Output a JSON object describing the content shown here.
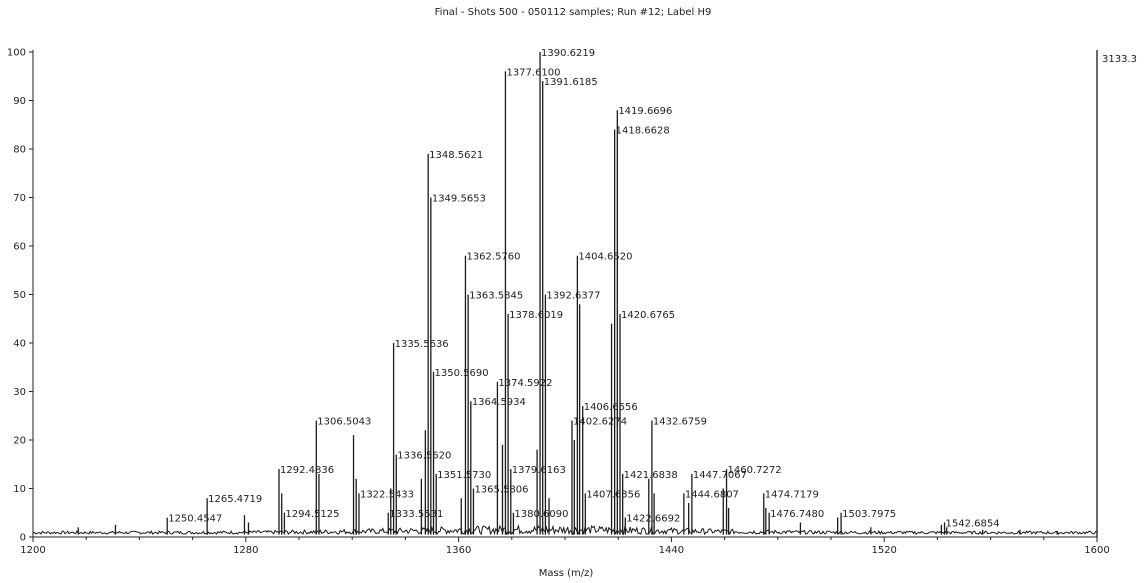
{
  "chart_data": {
    "type": "line",
    "title": "Final - Shots 500 - 050112 samples; Run #12; Label H9",
    "xlabel": "Mass (m/z)",
    "ylabel": "",
    "xlim": [
      1200,
      1600
    ],
    "ylim": [
      0,
      100
    ],
    "x_ticks": [
      "1200",
      "1280",
      "1360",
      "1440",
      "1520",
      "1600"
    ],
    "y_ticks": [
      "0",
      "10",
      "20",
      "30",
      "40",
      "50",
      "60",
      "70",
      "80",
      "90",
      "100"
    ],
    "max_intensity_label": "3133.3",
    "grid": false,
    "peaks": [
      {
        "x": 1250.4547,
        "y": 4,
        "label": "1250.4547"
      },
      {
        "x": 1265.4719,
        "y": 8,
        "label": "1265.4719"
      },
      {
        "x": 1292.4836,
        "y": 14,
        "label": "1292.4836"
      },
      {
        "x": 1294.5125,
        "y": 5,
        "label": "1294.5125"
      },
      {
        "x": 1306.5043,
        "y": 24,
        "label": "1306.5043"
      },
      {
        "x": 1322.5433,
        "y": 9,
        "label": "1322.5433"
      },
      {
        "x": 1333.5531,
        "y": 5,
        "label": "1333.5531"
      },
      {
        "x": 1335.5636,
        "y": 40,
        "label": "1335.5636"
      },
      {
        "x": 1336.562,
        "y": 17,
        "label": "1336.5620"
      },
      {
        "x": 1348.5621,
        "y": 79,
        "label": "1348.5621"
      },
      {
        "x": 1349.5653,
        "y": 70,
        "label": "1349.5653"
      },
      {
        "x": 1350.569,
        "y": 34,
        "label": "1350.5690"
      },
      {
        "x": 1351.573,
        "y": 13,
        "label": "1351.5730"
      },
      {
        "x": 1362.576,
        "y": 58,
        "label": "1362.5760"
      },
      {
        "x": 1363.5845,
        "y": 50,
        "label": "1363.5845"
      },
      {
        "x": 1364.5934,
        "y": 28,
        "label": "1364.5934"
      },
      {
        "x": 1365.5806,
        "y": 10,
        "label": "1365.5806"
      },
      {
        "x": 1374.5922,
        "y": 32,
        "label": "1374.5922"
      },
      {
        "x": 1377.61,
        "y": 96,
        "label": "1377.6100"
      },
      {
        "x": 1378.6019,
        "y": 46,
        "label": "1378.6019"
      },
      {
        "x": 1379.6163,
        "y": 14,
        "label": "1379.6163"
      },
      {
        "x": 1380.609,
        "y": 5,
        "label": "1380.6090"
      },
      {
        "x": 1390.6219,
        "y": 100,
        "label": "1390.6219"
      },
      {
        "x": 1391.6185,
        "y": 94,
        "label": "1391.6185"
      },
      {
        "x": 1392.6377,
        "y": 50,
        "label": "1392.6377"
      },
      {
        "x": 1402.6274,
        "y": 24,
        "label": "1402.6274"
      },
      {
        "x": 1404.652,
        "y": 58,
        "label": "1404.6520"
      },
      {
        "x": 1406.6556,
        "y": 27,
        "label": "1406.6556"
      },
      {
        "x": 1407.6356,
        "y": 9,
        "label": "1407.6356"
      },
      {
        "x": 1418.6628,
        "y": 84,
        "label": "1418.6628"
      },
      {
        "x": 1419.6696,
        "y": 88,
        "label": "1419.6696"
      },
      {
        "x": 1420.6765,
        "y": 46,
        "label": "1420.6765"
      },
      {
        "x": 1421.6838,
        "y": 13,
        "label": "1421.6838"
      },
      {
        "x": 1422.6692,
        "y": 4,
        "label": "1422.6692"
      },
      {
        "x": 1432.6759,
        "y": 24,
        "label": "1432.6759"
      },
      {
        "x": 1444.6807,
        "y": 9,
        "label": "1444.6807"
      },
      {
        "x": 1447.7067,
        "y": 13,
        "label": "1447.7067"
      },
      {
        "x": 1460.7272,
        "y": 14,
        "label": "1460.7272"
      },
      {
        "x": 1474.7179,
        "y": 9,
        "label": "1474.7179"
      },
      {
        "x": 1476.748,
        "y": 5,
        "label": "1476.7480"
      },
      {
        "x": 1503.7975,
        "y": 5,
        "label": "1503.7975"
      },
      {
        "x": 1542.6854,
        "y": 3,
        "label": "1542.6854"
      }
    ],
    "minor_peaks": [
      {
        "x": 1217.0,
        "y": 2
      },
      {
        "x": 1231.0,
        "y": 2.5
      },
      {
        "x": 1279.5,
        "y": 4.5
      },
      {
        "x": 1281.0,
        "y": 3
      },
      {
        "x": 1293.5,
        "y": 9
      },
      {
        "x": 1307.5,
        "y": 13
      },
      {
        "x": 1320.5,
        "y": 21
      },
      {
        "x": 1321.5,
        "y": 12
      },
      {
        "x": 1334.5,
        "y": 10
      },
      {
        "x": 1346.0,
        "y": 12
      },
      {
        "x": 1347.5,
        "y": 22
      },
      {
        "x": 1361.0,
        "y": 8
      },
      {
        "x": 1376.5,
        "y": 19
      },
      {
        "x": 1389.5,
        "y": 18
      },
      {
        "x": 1394.0,
        "y": 8
      },
      {
        "x": 1403.5,
        "y": 20
      },
      {
        "x": 1405.5,
        "y": 48
      },
      {
        "x": 1417.5,
        "y": 44
      },
      {
        "x": 1431.5,
        "y": 12
      },
      {
        "x": 1433.5,
        "y": 9
      },
      {
        "x": 1446.5,
        "y": 7
      },
      {
        "x": 1459.5,
        "y": 10
      },
      {
        "x": 1461.5,
        "y": 6
      },
      {
        "x": 1475.5,
        "y": 6
      },
      {
        "x": 1488.5,
        "y": 3
      },
      {
        "x": 1502.5,
        "y": 4
      },
      {
        "x": 1515.0,
        "y": 2
      },
      {
        "x": 1541.5,
        "y": 2.5
      },
      {
        "x": 1543.5,
        "y": 2
      },
      {
        "x": 1557.0,
        "y": 1.5
      },
      {
        "x": 1571.0,
        "y": 1.5
      },
      {
        "x": 1585.0,
        "y": 1.2
      }
    ],
    "colors": {
      "line": "#1a1a1a",
      "axis": "#222222",
      "text": "#222222"
    }
  }
}
